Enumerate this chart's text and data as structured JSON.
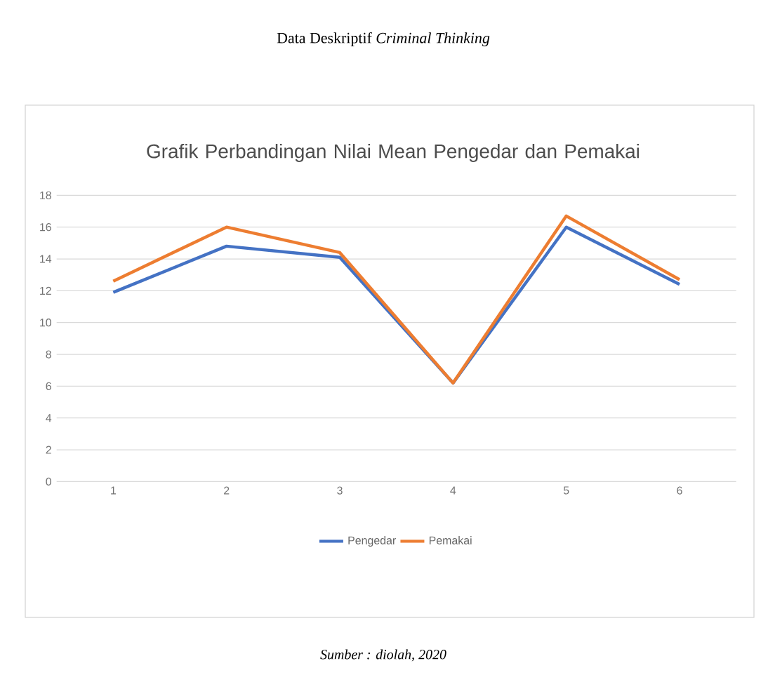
{
  "chart_data": {
    "type": "line",
    "title": "Grafik Perbandingan Nilai Mean Pengedar dan Pemakai",
    "categories": [
      "1",
      "2",
      "3",
      "4",
      "5",
      "6"
    ],
    "series": [
      {
        "name": "Pengedar",
        "color": "#4472c4",
        "values": [
          11.9,
          14.8,
          14.1,
          6.2,
          16.0,
          12.4
        ]
      },
      {
        "name": "Pemakai",
        "color": "#ed7d31",
        "values": [
          12.6,
          16.0,
          14.4,
          6.2,
          16.7,
          12.7
        ]
      }
    ],
    "ylim": [
      0,
      18
    ],
    "yticks": [
      0,
      2,
      4,
      6,
      8,
      10,
      12,
      14,
      16,
      18
    ],
    "grid": "y",
    "legend": "bottom",
    "annotations": [
      "Data Deskriptif *Criminal Thinking*",
      "Sumber : diolah, 2020"
    ]
  }
}
